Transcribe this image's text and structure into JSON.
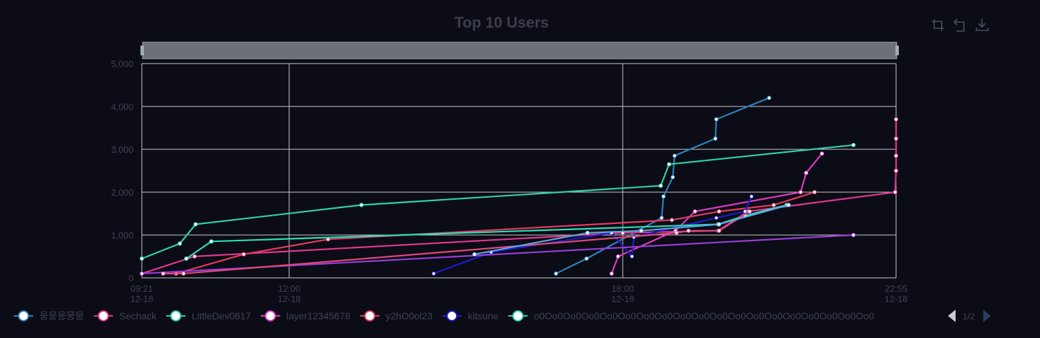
{
  "toolbar": {
    "icons": [
      "zoom-select-icon",
      "zoom-reset-icon",
      "download-icon"
    ]
  },
  "legend": {
    "page": "1/2"
  },
  "chart_data": {
    "type": "line",
    "title": "Top 10 Users",
    "xlabel": "",
    "ylabel": "",
    "ylim": [
      0,
      5000
    ],
    "xlim": [
      "12-18 09:21",
      "12-18 22:55"
    ],
    "y_ticks": [
      "0",
      "1,000",
      "2,000",
      "3,000",
      "4,000",
      "5,000"
    ],
    "x_ticks": [
      {
        "t": "12-18 09:21",
        "time": "09:21",
        "date": "12-18"
      },
      {
        "t": "12-18 12:00",
        "time": "12:00",
        "date": "12-18"
      },
      {
        "t": "12-18 18:00",
        "time": "18:00",
        "date": "12-18"
      },
      {
        "t": "12-18 22:55",
        "time": "22:55",
        "date": "12-18"
      }
    ],
    "grid": true,
    "legend_position": "bottom",
    "series": [
      {
        "name": "뭉뭉뭉뭉뭉",
        "color": "#2f83bd",
        "points": [
          [
            "12-18 16:48",
            100
          ],
          [
            "12-18 17:21",
            450
          ],
          [
            "12-18 18:42",
            1400
          ],
          [
            "12-18 18:44",
            1900
          ],
          [
            "12-18 18:54",
            2350
          ],
          [
            "12-18 18:56",
            2850
          ],
          [
            "12-18 19:40",
            3250
          ],
          [
            "12-18 19:41",
            3700
          ],
          [
            "12-18 20:38",
            4200
          ]
        ]
      },
      {
        "name": "Sechack",
        "color": "#e2388f",
        "points": [
          [
            "12-18 09:21",
            100
          ],
          [
            "12-18 10:18",
            500
          ],
          [
            "12-18 18:00",
            1050
          ],
          [
            "12-18 19:43",
            1100
          ],
          [
            "12-18 20:15",
            1550
          ],
          [
            "12-18 22:54",
            2000
          ],
          [
            "12-18 22:55",
            2500
          ],
          [
            "12-18 22:55",
            2850
          ],
          [
            "12-18 22:55",
            3250
          ],
          [
            "12-18 22:55",
            3700
          ]
        ]
      },
      {
        "name": "LittleDev0617",
        "color": "#2dd4a6",
        "points": [
          [
            "12-18 09:21",
            450
          ],
          [
            "12-18 10:02",
            800
          ],
          [
            "12-18 10:19",
            1250
          ],
          [
            "12-18 13:18",
            1700
          ],
          [
            "12-18 18:41",
            2150
          ],
          [
            "12-18 18:50",
            2650
          ],
          [
            "12-18 22:09",
            3100
          ]
        ]
      },
      {
        "name": "layer12345678",
        "color": "#e03ac2",
        "points": [
          [
            "12-18 17:48",
            100
          ],
          [
            "12-18 17:55",
            500
          ],
          [
            "12-18 18:57",
            1100
          ],
          [
            "12-18 19:18",
            1550
          ],
          [
            "12-18 21:12",
            2000
          ],
          [
            "12-18 21:18",
            2450
          ],
          [
            "12-18 21:35",
            2900
          ]
        ]
      },
      {
        "name": "y2hO0ol23",
        "color": "#e83a62",
        "points": [
          [
            "12-18 09:58",
            100
          ],
          [
            "12-18 11:11",
            550
          ],
          [
            "12-18 12:42",
            900
          ],
          [
            "12-18 18:53",
            1350
          ],
          [
            "12-18 19:44",
            1550
          ],
          [
            "12-18 20:43",
            1700
          ],
          [
            "12-18 21:27",
            2000
          ]
        ]
      },
      {
        "name": "kitsune",
        "color": "#1c1cd0",
        "points": [
          [
            "12-18 14:36",
            100
          ],
          [
            "12-18 15:38",
            600
          ],
          [
            "12-18 17:48",
            1050
          ],
          [
            "12-18 18:10",
            500
          ],
          [
            "12-18 18:12",
            950
          ],
          [
            "12-18 19:41",
            1400
          ],
          [
            "12-18 20:12",
            1550
          ],
          [
            "12-18 20:19",
            1900
          ]
        ]
      },
      {
        "name": "o0Oo0Oo0Oo0Oo0Oo0Oo0Oo0Oo0Oo0Oo0Oo0Oo0Oo0Oo0Oo0Oo0Oo0Oo0",
        "color": "#2ee0b6",
        "points": [
          [
            "12-18 10:09",
            450
          ],
          [
            "12-18 10:36",
            850
          ],
          [
            "12-18 19:43",
            1250
          ],
          [
            "12-18 20:12",
            1450
          ],
          [
            "12-18 20:57",
            1700
          ]
        ]
      },
      {
        "name": "",
        "color": "#9a3ed9",
        "points": [
          [
            "12-18 09:21",
            100
          ],
          [
            "12-18 22:09",
            1000
          ]
        ]
      },
      {
        "name": "",
        "color": "#e0487a",
        "points": [
          [
            "12-18 09:44",
            100
          ],
          [
            "12-18 10:06",
            100
          ],
          [
            "12-18 18:58",
            1050
          ],
          [
            "12-18 19:11",
            1100
          ],
          [
            "12-18 19:44",
            1100
          ],
          [
            "12-18 20:17",
            1550
          ]
        ]
      },
      {
        "name": "",
        "color": "#5aa8e0",
        "points": [
          [
            "12-18 15:20",
            550
          ],
          [
            "12-18 17:22",
            1050
          ],
          [
            "12-18 18:20",
            1100
          ],
          [
            "12-18 19:44",
            1250
          ],
          [
            "12-18 20:59",
            1700
          ]
        ]
      }
    ],
    "legend_entries": [
      {
        "name": "뭉뭉뭉뭉뭉",
        "color": "#2f83bd"
      },
      {
        "name": "Sechack",
        "color": "#e2388f"
      },
      {
        "name": "LittleDev0617",
        "color": "#2dd4a6"
      },
      {
        "name": "layer12345678",
        "color": "#e03ac2"
      },
      {
        "name": "y2hO0ol23",
        "color": "#e83a62"
      },
      {
        "name": "kitsune",
        "color": "#1c1cd0"
      },
      {
        "name": "o0Oo0Oo0Oo0Oo0Oo0Oo0Oo0Oo0Oo0Oo0Oo0Oo0Oo0Oo0Oo0Oo0Oo0Oo0",
        "color": "#2ee0b6"
      }
    ]
  }
}
